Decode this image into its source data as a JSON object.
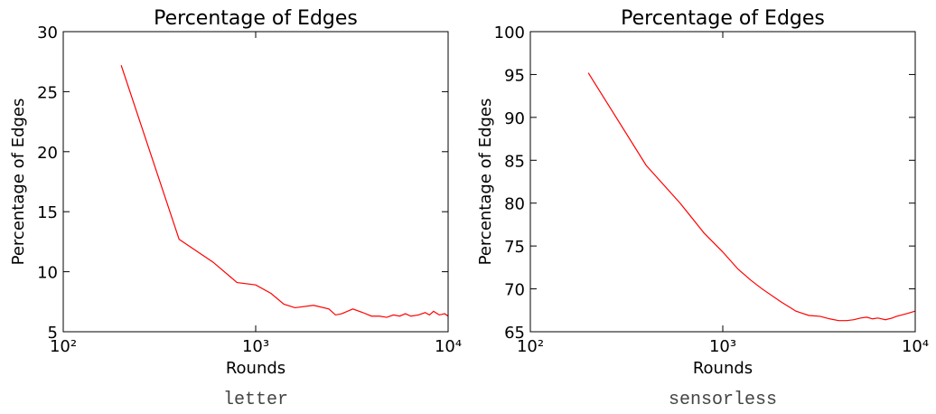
{
  "chart_data": [
    {
      "type": "line",
      "title": "Percentage of Edges",
      "xlabel": "Rounds",
      "ylabel": "Percentage of Edges",
      "caption": "letter",
      "xscale": "log",
      "xlim": [
        100,
        10000
      ],
      "xticks": [
        {
          "value": 100,
          "label": "10²"
        },
        {
          "value": 1000,
          "label": "10³"
        },
        {
          "value": 10000,
          "label": "10⁴"
        }
      ],
      "ylim": [
        5,
        30
      ],
      "yticks": [
        5,
        10,
        15,
        20,
        25,
        30
      ],
      "color": "#ff0000",
      "x": [
        200,
        400,
        600,
        800,
        1000,
        1200,
        1400,
        1600,
        2000,
        2400,
        2600,
        2800,
        3200,
        3600,
        4000,
        4400,
        4800,
        5200,
        5600,
        6000,
        6400,
        7000,
        7600,
        8000,
        8400,
        9000,
        9600,
        10000
      ],
      "values": [
        27.2,
        12.7,
        10.8,
        9.1,
        8.9,
        8.2,
        7.3,
        7.0,
        7.2,
        6.9,
        6.4,
        6.5,
        6.9,
        6.6,
        6.3,
        6.3,
        6.2,
        6.4,
        6.3,
        6.5,
        6.3,
        6.4,
        6.6,
        6.4,
        6.7,
        6.4,
        6.5,
        6.3
      ]
    },
    {
      "type": "line",
      "title": "Percentage of Edges",
      "xlabel": "Rounds",
      "ylabel": "Percentage of Edges",
      "caption": "sensorless",
      "xscale": "log",
      "xlim": [
        100,
        10000
      ],
      "xticks": [
        {
          "value": 100,
          "label": "10²"
        },
        {
          "value": 1000,
          "label": "10³"
        },
        {
          "value": 10000,
          "label": "10⁴"
        }
      ],
      "ylim": [
        65,
        100
      ],
      "yticks": [
        65,
        70,
        75,
        80,
        85,
        90,
        95,
        100
      ],
      "color": "#ff0000",
      "x": [
        200,
        400,
        600,
        800,
        1000,
        1200,
        1400,
        1600,
        2000,
        2400,
        2800,
        3200,
        3600,
        4000,
        4400,
        4800,
        5200,
        5600,
        6000,
        6400,
        7000,
        7600,
        8000,
        9000,
        10000
      ],
      "values": [
        95.2,
        84.4,
        80.0,
        76.5,
        74.3,
        72.3,
        71.0,
        70.0,
        68.5,
        67.4,
        66.9,
        66.8,
        66.5,
        66.3,
        66.3,
        66.4,
        66.6,
        66.7,
        66.5,
        66.6,
        66.4,
        66.6,
        66.8,
        67.1,
        67.4
      ]
    }
  ]
}
